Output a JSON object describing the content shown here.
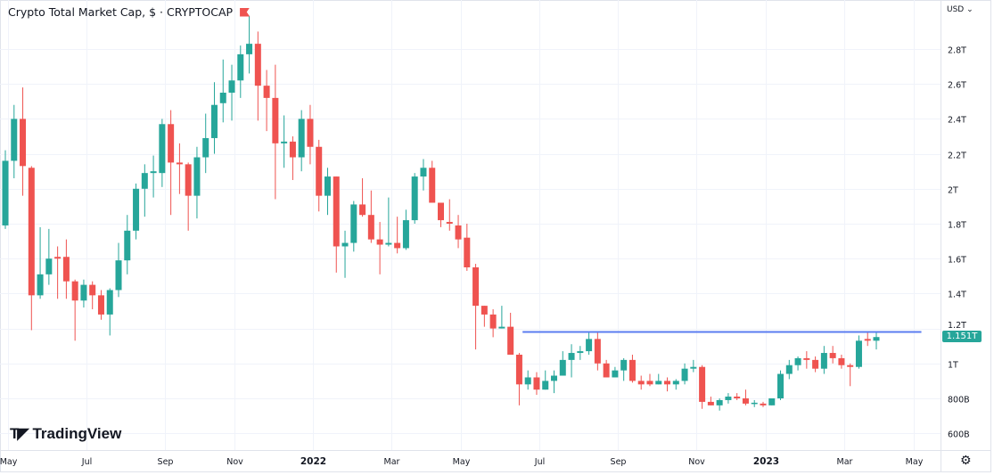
{
  "header": {
    "title": "Crypto Total Market Cap, $ · CRYPTOCAP",
    "currency_label": "USD ⌄",
    "flag_icon": "flag-icon"
  },
  "brand": {
    "mark": "𝗧𝗩",
    "name": "TradingView"
  },
  "last_price_label": "1.151T",
  "settings_icon": "gear-icon",
  "colors": {
    "up": "#26a69a",
    "down": "#ef5350",
    "line": "#5b7cf0",
    "grid": "#f0f3fa"
  },
  "chart_data": {
    "type": "candlestick",
    "title": "Crypto Total Market Cap, $ · CRYPTOCAP",
    "interval": "weekly",
    "ylabel": "USD",
    "ylim": [
      0.55,
      2.95
    ],
    "y_ticks": [
      {
        "v": 2.8,
        "label": "2.8T"
      },
      {
        "v": 2.6,
        "label": "2.6T"
      },
      {
        "v": 2.4,
        "label": "2.4T"
      },
      {
        "v": 2.2,
        "label": "2.2T"
      },
      {
        "v": 2.0,
        "label": "2T"
      },
      {
        "v": 1.8,
        "label": "1.8T"
      },
      {
        "v": 1.6,
        "label": "1.6T"
      },
      {
        "v": 1.4,
        "label": "1.4T"
      },
      {
        "v": 1.2,
        "label": "1.2T"
      },
      {
        "v": 1.0,
        "label": "1T"
      },
      {
        "v": 0.8,
        "label": "800B"
      },
      {
        "v": 0.6,
        "label": "600B"
      }
    ],
    "x_ticks": [
      {
        "i": 1,
        "label": "May",
        "bold": false
      },
      {
        "i": 10,
        "label": "Jul",
        "bold": false
      },
      {
        "i": 19,
        "label": "Sep",
        "bold": false
      },
      {
        "i": 27,
        "label": "Nov",
        "bold": false
      },
      {
        "i": 36,
        "label": "2022",
        "bold": true
      },
      {
        "i": 45,
        "label": "Mar",
        "bold": false
      },
      {
        "i": 53,
        "label": "May",
        "bold": false
      },
      {
        "i": 62,
        "label": "Jul",
        "bold": false
      },
      {
        "i": 71,
        "label": "Sep",
        "bold": false
      },
      {
        "i": 80,
        "label": "Nov",
        "bold": false
      },
      {
        "i": 88,
        "label": "2023",
        "bold": true
      },
      {
        "i": 97,
        "label": "Mar",
        "bold": false
      },
      {
        "i": 105,
        "label": "May",
        "bold": false
      }
    ],
    "horizontal_line": {
      "value": 1.18,
      "from_index": 61,
      "to_index": 103
    },
    "last_price": 1.151,
    "ohlc": [
      [
        1.79,
        2.22,
        1.77,
        2.16
      ],
      [
        2.16,
        2.48,
        2.06,
        2.4
      ],
      [
        2.4,
        2.58,
        1.96,
        2.13
      ],
      [
        2.12,
        2.13,
        1.19,
        1.39
      ],
      [
        1.39,
        1.78,
        1.37,
        1.51
      ],
      [
        1.51,
        1.77,
        1.45,
        1.6
      ],
      [
        1.61,
        1.67,
        1.37,
        1.6
      ],
      [
        1.61,
        1.71,
        1.37,
        1.47
      ],
      [
        1.47,
        1.48,
        1.13,
        1.36
      ],
      [
        1.36,
        1.48,
        1.32,
        1.45
      ],
      [
        1.45,
        1.47,
        1.31,
        1.39
      ],
      [
        1.39,
        1.42,
        1.25,
        1.28
      ],
      [
        1.28,
        1.43,
        1.16,
        1.42
      ],
      [
        1.42,
        1.69,
        1.38,
        1.59
      ],
      [
        1.59,
        1.85,
        1.51,
        1.76
      ],
      [
        1.76,
        2.03,
        1.71,
        2.0
      ],
      [
        2.0,
        2.14,
        1.84,
        2.09
      ],
      [
        2.09,
        2.19,
        1.95,
        2.1
      ],
      [
        2.09,
        2.4,
        2.01,
        2.37
      ],
      [
        2.37,
        2.45,
        1.85,
        2.15
      ],
      [
        2.15,
        2.26,
        1.97,
        2.14
      ],
      [
        2.14,
        2.15,
        1.76,
        1.96
      ],
      [
        1.96,
        2.24,
        1.83,
        2.18
      ],
      [
        2.18,
        2.43,
        2.09,
        2.29
      ],
      [
        2.29,
        2.61,
        2.2,
        2.48
      ],
      [
        2.49,
        2.74,
        2.38,
        2.55
      ],
      [
        2.55,
        2.71,
        2.39,
        2.62
      ],
      [
        2.62,
        2.82,
        2.52,
        2.77
      ],
      [
        2.77,
        2.99,
        2.66,
        2.83
      ],
      [
        2.83,
        2.9,
        2.39,
        2.59
      ],
      [
        2.59,
        2.68,
        2.33,
        2.52
      ],
      [
        2.52,
        2.71,
        1.94,
        2.26
      ],
      [
        2.26,
        2.42,
        2.12,
        2.27
      ],
      [
        2.27,
        2.3,
        2.05,
        2.18
      ],
      [
        2.18,
        2.45,
        2.1,
        2.4
      ],
      [
        2.4,
        2.48,
        2.14,
        2.24
      ],
      [
        2.24,
        2.28,
        1.87,
        1.96
      ],
      [
        1.96,
        2.12,
        1.85,
        2.07
      ],
      [
        2.07,
        2.07,
        1.52,
        1.67
      ],
      [
        1.67,
        1.76,
        1.49,
        1.69
      ],
      [
        1.69,
        1.93,
        1.64,
        1.91
      ],
      [
        1.91,
        2.06,
        1.84,
        1.85
      ],
      [
        1.85,
        1.99,
        1.69,
        1.71
      ],
      [
        1.71,
        1.81,
        1.51,
        1.68
      ],
      [
        1.68,
        1.95,
        1.67,
        1.69
      ],
      [
        1.69,
        1.84,
        1.63,
        1.66
      ],
      [
        1.66,
        1.88,
        1.65,
        1.82
      ],
      [
        1.82,
        2.09,
        1.8,
        2.07
      ],
      [
        2.07,
        2.17,
        1.99,
        2.12
      ],
      [
        2.12,
        2.16,
        1.92,
        1.92
      ],
      [
        1.92,
        1.92,
        1.78,
        1.82
      ],
      [
        1.81,
        1.94,
        1.76,
        1.8
      ],
      [
        1.79,
        1.85,
        1.66,
        1.71
      ],
      [
        1.72,
        1.8,
        1.53,
        1.55
      ],
      [
        1.55,
        1.57,
        1.08,
        1.33
      ],
      [
        1.33,
        1.33,
        1.21,
        1.28
      ],
      [
        1.28,
        1.31,
        1.15,
        1.2
      ],
      [
        1.2,
        1.33,
        1.2,
        1.21
      ],
      [
        1.21,
        1.29,
        1.05,
        1.05
      ],
      [
        1.05,
        1.06,
        0.76,
        0.88
      ],
      [
        0.88,
        0.96,
        0.85,
        0.92
      ],
      [
        0.92,
        0.95,
        0.82,
        0.85
      ],
      [
        0.85,
        0.96,
        0.85,
        0.9
      ],
      [
        0.9,
        0.96,
        0.83,
        0.93
      ],
      [
        0.93,
        1.07,
        0.93,
        1.02
      ],
      [
        1.02,
        1.11,
        0.92,
        1.06
      ],
      [
        1.06,
        1.1,
        1.02,
        1.07
      ],
      [
        1.07,
        1.18,
        1.05,
        1.14
      ],
      [
        1.14,
        1.18,
        0.96,
        1.0
      ],
      [
        1.0,
        1.02,
        0.92,
        0.92
      ],
      [
        0.92,
        0.98,
        0.92,
        0.96
      ],
      [
        0.96,
        1.03,
        0.9,
        1.02
      ],
      [
        1.02,
        1.05,
        0.89,
        0.9
      ],
      [
        0.9,
        0.93,
        0.85,
        0.88
      ],
      [
        0.9,
        0.94,
        0.87,
        0.88
      ],
      [
        0.88,
        0.94,
        0.88,
        0.9
      ],
      [
        0.9,
        0.92,
        0.84,
        0.88
      ],
      [
        0.88,
        0.91,
        0.85,
        0.9
      ],
      [
        0.9,
        1.0,
        0.88,
        0.97
      ],
      [
        0.97,
        1.02,
        0.95,
        0.98
      ],
      [
        0.98,
        0.99,
        0.74,
        0.78
      ],
      [
        0.78,
        0.81,
        0.76,
        0.76
      ],
      [
        0.76,
        0.8,
        0.73,
        0.79
      ],
      [
        0.79,
        0.83,
        0.77,
        0.81
      ],
      [
        0.81,
        0.83,
        0.79,
        0.8
      ],
      [
        0.8,
        0.85,
        0.76,
        0.77
      ],
      [
        0.77,
        0.79,
        0.75,
        0.775
      ],
      [
        0.77,
        0.78,
        0.75,
        0.76
      ],
      [
        0.76,
        0.8,
        0.76,
        0.8
      ],
      [
        0.8,
        0.96,
        0.79,
        0.94
      ],
      [
        0.94,
        1.02,
        0.91,
        0.99
      ],
      [
        0.99,
        1.04,
        0.96,
        1.03
      ],
      [
        1.03,
        1.07,
        0.97,
        1.02
      ],
      [
        1.02,
        1.04,
        0.95,
        0.97
      ],
      [
        0.97,
        1.1,
        0.94,
        1.06
      ],
      [
        1.06,
        1.1,
        1.0,
        1.03
      ],
      [
        1.03,
        1.05,
        0.97,
        0.99
      ],
      [
        0.99,
        1.0,
        0.87,
        0.98
      ],
      [
        0.98,
        1.16,
        0.97,
        1.13
      ],
      [
        1.14,
        1.18,
        1.1,
        1.13
      ],
      [
        1.13,
        1.18,
        1.08,
        1.151
      ]
    ]
  }
}
